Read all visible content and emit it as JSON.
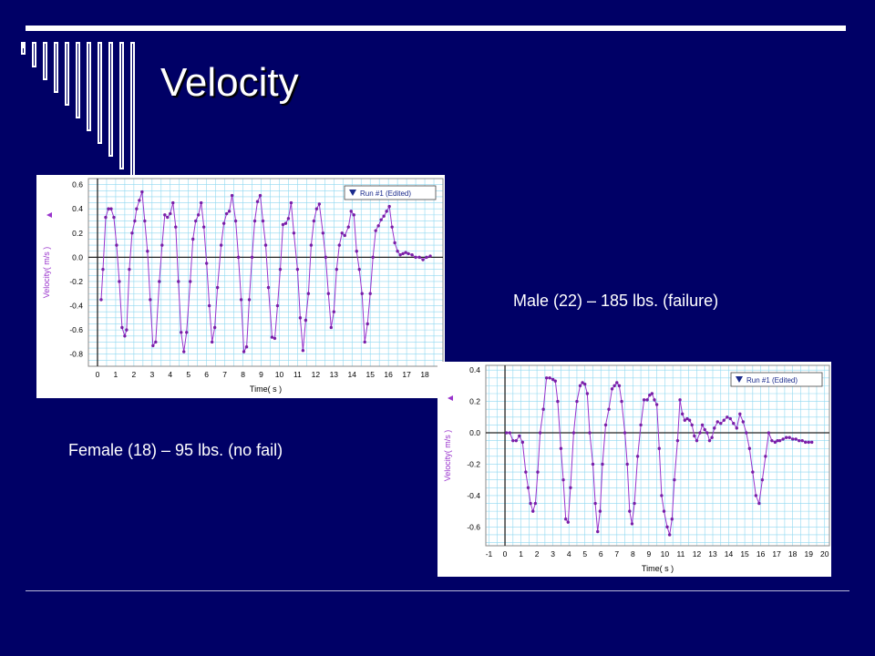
{
  "slide": {
    "title": "Velocity",
    "theme_colors": {
      "background": "#000066",
      "rule": "#ffffff",
      "text": "#ffffff"
    }
  },
  "captions": {
    "male": "Male (22) – 185 lbs. (failure)",
    "female": "Female (18) – 95 lbs. (no fail)"
  },
  "chart_data": [
    {
      "id": "female",
      "type": "line",
      "xlabel": "Time( s )",
      "ylabel": "Velocity( m/s )",
      "xlim": [
        -0.5,
        19
      ],
      "ylim": [
        -0.9,
        0.65
      ],
      "xticks": [
        0,
        1,
        2,
        3,
        4,
        5,
        6,
        7,
        8,
        9,
        10,
        11,
        12,
        13,
        14,
        15,
        16,
        17,
        18,
        19
      ],
      "yticks": [
        -0.8,
        -0.6,
        -0.4,
        -0.2,
        0.0,
        0.2,
        0.4,
        0.6
      ],
      "ytick_labels": [
        "-0.8",
        "-0.6",
        "-0.4",
        "-0.2",
        "0.0",
        "0.2",
        "0.4",
        "0.6"
      ],
      "grid": true,
      "legend_position": "top-right",
      "colors": {
        "series": "#9933cc",
        "marker": "#7a1fa8",
        "grid": "#8fd8f0"
      },
      "series": [
        {
          "name": "Run #1 (Edited)",
          "x": [
            0.2,
            0.3,
            0.45,
            0.6,
            0.75,
            0.9,
            1.05,
            1.2,
            1.35,
            1.5,
            1.6,
            1.75,
            1.9,
            2.05,
            2.15,
            2.3,
            2.45,
            2.6,
            2.75,
            2.9,
            3.05,
            3.2,
            3.4,
            3.55,
            3.7,
            3.85,
            4.0,
            4.15,
            4.3,
            4.45,
            4.6,
            4.75,
            4.9,
            5.1,
            5.25,
            5.4,
            5.55,
            5.7,
            5.85,
            6.0,
            6.15,
            6.3,
            6.45,
            6.6,
            6.8,
            6.95,
            7.1,
            7.25,
            7.4,
            7.6,
            7.75,
            7.9,
            8.05,
            8.2,
            8.35,
            8.5,
            8.65,
            8.8,
            8.95,
            9.1,
            9.25,
            9.4,
            9.6,
            9.75,
            9.9,
            10.05,
            10.2,
            10.35,
            10.5,
            10.65,
            10.8,
            11.0,
            11.15,
            11.3,
            11.45,
            11.6,
            11.75,
            11.9,
            12.05,
            12.2,
            12.4,
            12.55,
            12.7,
            12.85,
            13.0,
            13.15,
            13.3,
            13.45,
            13.6,
            13.8,
            13.95,
            14.1,
            14.25,
            14.4,
            14.55,
            14.7,
            14.85,
            15.0,
            15.15,
            15.3,
            15.45,
            15.6,
            15.75,
            15.9,
            16.05,
            16.2,
            16.35,
            16.5,
            16.65,
            16.8,
            16.95,
            17.1,
            17.3,
            17.5,
            17.7,
            17.9,
            18.1,
            18.3
          ],
          "y": [
            -0.35,
            -0.1,
            0.33,
            0.4,
            0.4,
            0.33,
            0.1,
            -0.2,
            -0.58,
            -0.65,
            -0.6,
            -0.1,
            0.2,
            0.3,
            0.4,
            0.47,
            0.54,
            0.3,
            0.05,
            -0.35,
            -0.73,
            -0.7,
            -0.2,
            0.1,
            0.35,
            0.33,
            0.36,
            0.45,
            0.25,
            -0.2,
            -0.62,
            -0.78,
            -0.62,
            -0.2,
            0.15,
            0.3,
            0.35,
            0.45,
            0.25,
            -0.05,
            -0.4,
            -0.7,
            -0.58,
            -0.25,
            0.1,
            0.28,
            0.36,
            0.38,
            0.51,
            0.3,
            0.0,
            -0.35,
            -0.78,
            -0.74,
            -0.35,
            0.0,
            0.3,
            0.46,
            0.51,
            0.3,
            0.1,
            -0.25,
            -0.66,
            -0.67,
            -0.4,
            -0.1,
            0.27,
            0.28,
            0.32,
            0.45,
            0.2,
            -0.1,
            -0.5,
            -0.77,
            -0.52,
            -0.3,
            0.1,
            0.3,
            0.4,
            0.44,
            0.2,
            0.0,
            -0.3,
            -0.58,
            -0.45,
            -0.1,
            0.1,
            0.2,
            0.18,
            0.25,
            0.38,
            0.35,
            0.05,
            -0.1,
            -0.3,
            -0.7,
            -0.55,
            -0.3,
            0.0,
            0.22,
            0.26,
            0.31,
            0.34,
            0.38,
            0.42,
            0.25,
            0.12,
            0.05,
            0.02,
            0.03,
            0.04,
            0.03,
            0.02,
            0.0,
            0.0,
            -0.02,
            0.0,
            0.01
          ]
        }
      ]
    },
    {
      "id": "male",
      "type": "line",
      "xlabel": "Time( s )",
      "ylabel": "Velocity( m/s )",
      "xlim": [
        -1.2,
        20.3
      ],
      "ylim": [
        -0.72,
        0.43
      ],
      "xticks": [
        -1,
        0,
        1,
        2,
        3,
        4,
        5,
        6,
        7,
        8,
        9,
        10,
        11,
        12,
        13,
        14,
        15,
        16,
        17,
        18,
        19,
        20
      ],
      "yticks": [
        -0.6,
        -0.4,
        -0.2,
        0.0,
        0.2,
        0.4
      ],
      "ytick_labels": [
        "-0.6",
        "-0.4",
        "-0.2",
        "0.0",
        "0.2",
        "0.4"
      ],
      "grid": true,
      "legend_position": "top-right",
      "colors": {
        "series": "#9933cc",
        "marker": "#7a1fa8",
        "grid": "#8fd8f0"
      },
      "series": [
        {
          "name": "Run #1 (Edited)",
          "x": [
            0.1,
            0.3,
            0.5,
            0.7,
            0.9,
            1.1,
            1.3,
            1.45,
            1.6,
            1.75,
            1.9,
            2.05,
            2.2,
            2.4,
            2.6,
            2.8,
            3.0,
            3.15,
            3.3,
            3.5,
            3.65,
            3.8,
            3.95,
            4.1,
            4.3,
            4.5,
            4.7,
            4.85,
            5.0,
            5.15,
            5.3,
            5.5,
            5.65,
            5.8,
            5.95,
            6.1,
            6.3,
            6.5,
            6.7,
            6.85,
            7.0,
            7.15,
            7.3,
            7.5,
            7.65,
            7.8,
            7.95,
            8.1,
            8.3,
            8.5,
            8.7,
            8.9,
            9.05,
            9.2,
            9.35,
            9.5,
            9.65,
            9.8,
            9.95,
            10.15,
            10.3,
            10.45,
            10.6,
            10.8,
            10.95,
            11.1,
            11.25,
            11.4,
            11.55,
            11.7,
            11.85,
            12.0,
            12.2,
            12.35,
            12.5,
            12.65,
            12.8,
            12.95,
            13.1,
            13.3,
            13.5,
            13.7,
            13.9,
            14.1,
            14.3,
            14.5,
            14.7,
            14.9,
            15.1,
            15.3,
            15.5,
            15.7,
            15.9,
            16.1,
            16.3,
            16.5,
            16.7,
            16.9,
            17.05,
            17.2,
            17.4,
            17.6,
            17.8,
            18.0,
            18.2,
            18.4,
            18.6,
            18.8,
            19.0,
            19.2
          ],
          "y": [
            0.0,
            0.0,
            -0.05,
            -0.05,
            -0.02,
            -0.06,
            -0.25,
            -0.35,
            -0.45,
            -0.5,
            -0.45,
            -0.25,
            0.0,
            0.15,
            0.35,
            0.35,
            0.34,
            0.33,
            0.2,
            -0.1,
            -0.3,
            -0.55,
            -0.57,
            -0.35,
            0.0,
            0.2,
            0.3,
            0.32,
            0.31,
            0.25,
            0.0,
            -0.2,
            -0.45,
            -0.63,
            -0.5,
            -0.2,
            0.05,
            0.15,
            0.28,
            0.3,
            0.32,
            0.3,
            0.2,
            0.0,
            -0.2,
            -0.5,
            -0.58,
            -0.45,
            -0.15,
            0.05,
            0.21,
            0.21,
            0.24,
            0.25,
            0.21,
            0.18,
            -0.1,
            -0.4,
            -0.5,
            -0.6,
            -0.65,
            -0.55,
            -0.3,
            -0.05,
            0.21,
            0.12,
            0.08,
            0.09,
            0.08,
            0.05,
            -0.02,
            -0.05,
            0.0,
            0.05,
            0.02,
            0.0,
            -0.05,
            -0.03,
            0.03,
            0.07,
            0.06,
            0.08,
            0.1,
            0.09,
            0.06,
            0.03,
            0.12,
            0.07,
            0.0,
            -0.1,
            -0.25,
            -0.4,
            -0.45,
            -0.3,
            -0.15,
            0.0,
            -0.05,
            -0.06,
            -0.05,
            -0.05,
            -0.04,
            -0.03,
            -0.03,
            -0.04,
            -0.04,
            -0.05,
            -0.05,
            -0.06,
            -0.06,
            -0.06
          ]
        }
      ]
    }
  ]
}
